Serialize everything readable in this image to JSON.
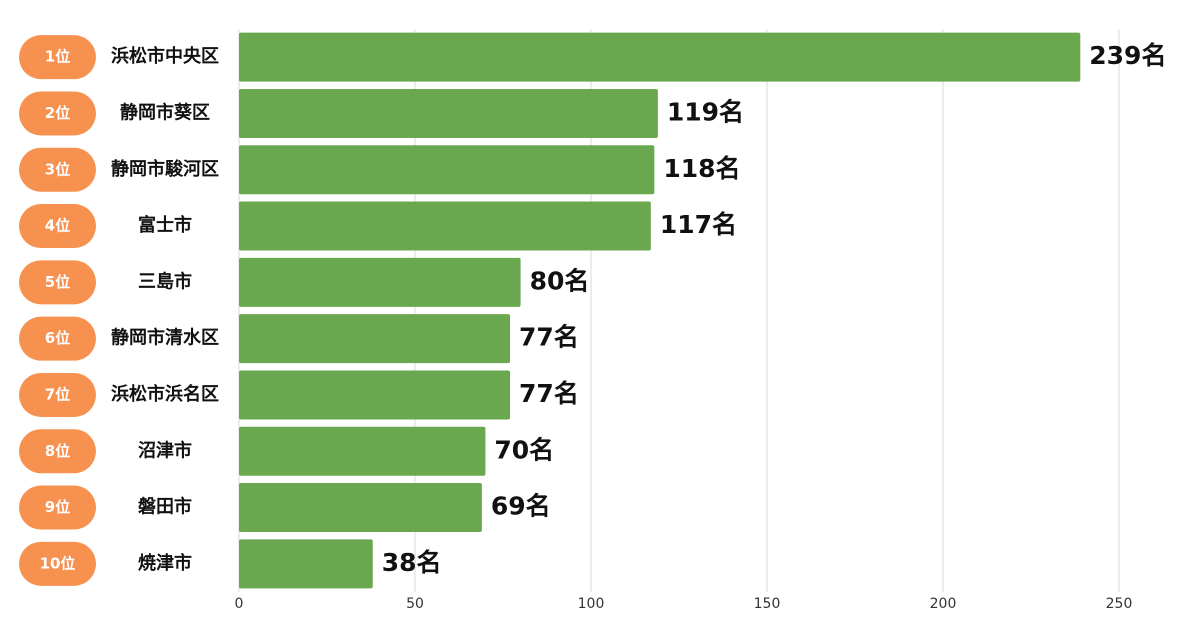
{
  "chart_data": {
    "type": "barh",
    "ranks": [
      "1位",
      "2位",
      "3位",
      "4位",
      "5位",
      "6位",
      "7位",
      "8位",
      "9位",
      "10位"
    ],
    "categories": [
      "浜松市中央区",
      "静岡市葵区",
      "静岡市駿河区",
      "富士市",
      "三島市",
      "静岡市清水区",
      "浜松市浜名区",
      "沼津市",
      "磐田市",
      "焼津市"
    ],
    "values": [
      239,
      119,
      118,
      117,
      80,
      77,
      77,
      70,
      69,
      38
    ],
    "value_labels": [
      "239名",
      "119名",
      "118名",
      "117名",
      "80名",
      "77名",
      "77名",
      "70名",
      "69名",
      "38名"
    ],
    "color": "#6aa84f",
    "rank_color": "#f79150",
    "xlim": [
      0,
      250
    ],
    "xticks": [
      0,
      50,
      100,
      150,
      200,
      250
    ],
    "grid": true
  }
}
